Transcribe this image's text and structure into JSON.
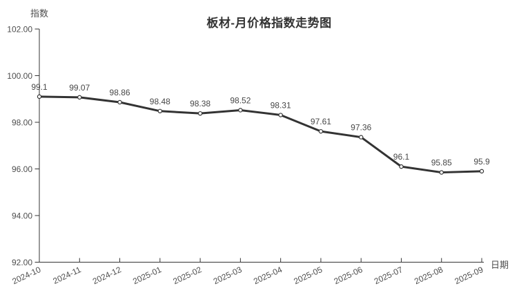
{
  "chart_data": {
    "type": "line",
    "title": "板材-月价格指数走势图",
    "xlabel": "日期",
    "ylabel": "指数",
    "categories": [
      "2024-10",
      "2024-11",
      "2024-12",
      "2025-01",
      "2025-02",
      "2025-03",
      "2025-04",
      "2025-05",
      "2025-06",
      "2025-07",
      "2025-08",
      "2025-09"
    ],
    "values": [
      99.1,
      99.07,
      98.86,
      98.48,
      98.38,
      98.52,
      98.31,
      97.61,
      97.36,
      96.1,
      95.85,
      95.9
    ],
    "point_labels": [
      "99.1",
      "99.07",
      "98.86",
      "98.48",
      "98.38",
      "98.52",
      "98.31",
      "97.61",
      "97.36",
      "96.1",
      "95.85",
      "95.9"
    ],
    "ylim": [
      92,
      102
    ],
    "yticks": [
      92,
      94,
      96,
      98,
      100,
      102
    ],
    "ytick_labels": [
      "92.00",
      "94.00",
      "96.00",
      "98.00",
      "100.00",
      "102.00"
    ],
    "grid": false,
    "legend_position": "none",
    "x_label_rotation": -25,
    "colors": {
      "line": "#333333",
      "marker_fill": "#ffffff",
      "marker_stroke": "#333333",
      "axis": "#333333",
      "tick_label": "#4d4d4d",
      "data_label": "#474747",
      "title": "#333333",
      "background": "#ffffff"
    }
  }
}
